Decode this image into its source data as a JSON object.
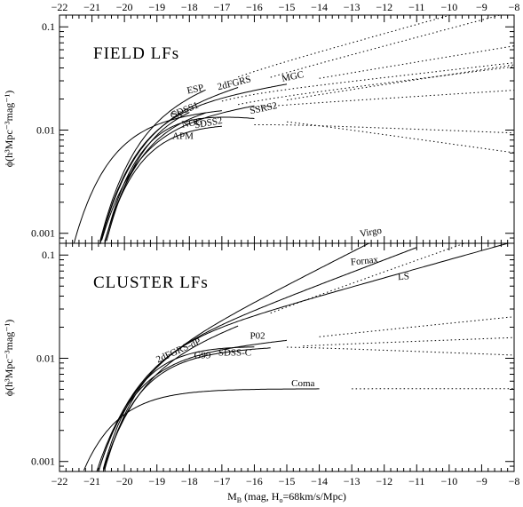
{
  "chart_data": {
    "type": "line",
    "x_axis": {
      "label_main": "M",
      "label_sub": "B",
      "label_rest_a": " (mag, H",
      "label_rest_sub": "o",
      "label_rest_b": "=68km/s/Mpc)",
      "range": [
        -22,
        -8
      ],
      "ticks": [
        -22,
        -21,
        -20,
        -19,
        -18,
        -17,
        -16,
        -15,
        -14,
        -13,
        -12,
        -11,
        -10,
        -9,
        -8
      ],
      "tick_labels": [
        "−22",
        "−21",
        "−20",
        "−19",
        "−18",
        "−17",
        "−16",
        "−15",
        "−14",
        "−13",
        "−12",
        "−11",
        "−10",
        "−9",
        "−8"
      ],
      "ticks_top_too": true
    },
    "panels": [
      {
        "id": "field",
        "title": "FIELD LFs",
        "ylabel": "ϕ(h³Mpc⁻³mag⁻¹)",
        "yscale": "log",
        "ylim": [
          0.0008,
          0.13
        ],
        "y_ticks": [
          0.1,
          0.01,
          0.001
        ],
        "y_tick_labels": [
          "0.1",
          "0.01",
          "0.001"
        ],
        "series": [
          {
            "name": "SDSS1",
            "phistar": 0.0149,
            "mstar": -20.44,
            "alpha": -1.05,
            "solid_to": -17.0,
            "dotted_to": -8.0
          },
          {
            "name": "ESP",
            "phistar": 0.02,
            "mstar": -19.61,
            "alpha": -1.22,
            "solid_to": -17.5,
            "dotted_to": -8.0
          },
          {
            "name": "2dFGRS",
            "phistar": 0.0161,
            "mstar": -19.66,
            "alpha": -1.21,
            "solid_to": -16.5,
            "dotted_to": -8.0
          },
          {
            "name": "MGC",
            "phistar": 0.0177,
            "mstar": -19.6,
            "alpha": -1.13,
            "solid_to": -15.0,
            "dotted_to": -8.0
          },
          {
            "name": "CS",
            "phistar": 0.019,
            "mstar": -19.38,
            "alpha": -1.09,
            "solid_to": -18.0,
            "dotted_to": -8.0
          },
          {
            "name": "NOG",
            "phistar": 0.0155,
            "mstar": -19.5,
            "alpha": -1.1,
            "solid_to": -17.5,
            "dotted_to": -8.0
          },
          {
            "name": "SSRS2",
            "phistar": 0.0128,
            "mstar": -19.7,
            "alpha": -1.12,
            "solid_to": -16.0,
            "dotted_to": -8.0
          },
          {
            "name": "SDSS2",
            "phistar": 0.0206,
            "mstar": -19.31,
            "alpha": -0.89,
            "solid_to": -16.0,
            "dotted_to": -8.0
          },
          {
            "name": "APM",
            "phistar": 0.014,
            "mstar": -19.5,
            "alpha": -0.97,
            "solid_to": -17.0,
            "dotted_to": -8.0
          }
        ]
      },
      {
        "id": "cluster",
        "title": "CLUSTER LFs",
        "ylabel": "ϕ(h³Mpc⁻³mag⁻¹)",
        "yscale": "log",
        "ylim": [
          0.0008,
          0.13
        ],
        "y_ticks": [
          0.1,
          0.01,
          0.001
        ],
        "y_tick_labels": [
          "0.1",
          "0.01",
          "0.001"
        ],
        "series": [
          {
            "name": "Virgo",
            "phistar": 0.0085,
            "mstar": -20.1,
            "alpha": -1.4,
            "solid_to": -11.5,
            "dotted_to": -8.0
          },
          {
            "name": "Fornax",
            "phistar": 0.011,
            "mstar": -19.9,
            "alpha": -1.3,
            "solid_to": -11.0,
            "dotted_to": -8.0
          },
          {
            "name": "LS",
            "phistar": 0.014,
            "mstar": -19.6,
            "alpha": -1.22,
            "solid_to": -8.0,
            "dotted_to": -8.0
          },
          {
            "name": "2dFGRS-dP",
            "phistar": 0.01,
            "mstar": -19.8,
            "alpha": -1.28,
            "solid_to": -16.5,
            "dotted_to": -8.0
          },
          {
            "name": "P02",
            "phistar": 0.0115,
            "mstar": -19.8,
            "alpha": -1.08,
            "solid_to": -15.0,
            "dotted_to": -8.0
          },
          {
            "name": "SDSS-C",
            "phistar": 0.0125,
            "mstar": -19.6,
            "alpha": -1.03,
            "solid_to": -15.5,
            "dotted_to": -8.0
          },
          {
            "name": "Coma",
            "phistar": 0.0055,
            "mstar": -20.6,
            "alpha": -1.0,
            "solid_to": -14.0,
            "dotted_to": -8.0
          },
          {
            "name": "G99",
            "phistar": 0.016,
            "mstar": -19.5,
            "alpha": -0.97,
            "solid_to": -16.0,
            "dotted_to": -8.0
          }
        ]
      }
    ]
  }
}
